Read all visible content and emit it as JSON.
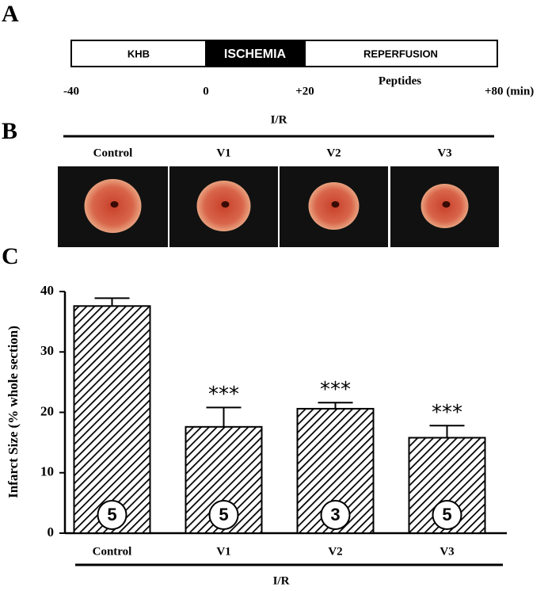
{
  "panels": {
    "a": "A",
    "b": "B",
    "c": "C"
  },
  "timeline": {
    "segments": [
      "KHB",
      "ISCHEMIA",
      "REPERFUSION"
    ],
    "times": [
      "-40",
      "0",
      "+20",
      "+80 (min)"
    ],
    "note": "Peptides"
  },
  "images": {
    "group": "I/R",
    "labels": [
      "Control",
      "V1",
      "V2",
      "V3"
    ]
  },
  "chart_data": {
    "type": "bar",
    "ylabel": "Infarct Size (% whole section)",
    "group": "I/R",
    "categories": [
      "Control",
      "V1",
      "V2",
      "V3"
    ],
    "values": [
      37.6,
      17.6,
      20.6,
      15.8
    ],
    "errors": [
      1.3,
      3.2,
      1.0,
      2.0
    ],
    "annotations": [
      null,
      "***",
      "***",
      "***"
    ],
    "n": [
      5,
      5,
      3,
      5
    ],
    "color": "#000000",
    "ylim": [
      0,
      40
    ],
    "yticks": [
      0,
      10,
      20,
      30,
      40
    ]
  }
}
